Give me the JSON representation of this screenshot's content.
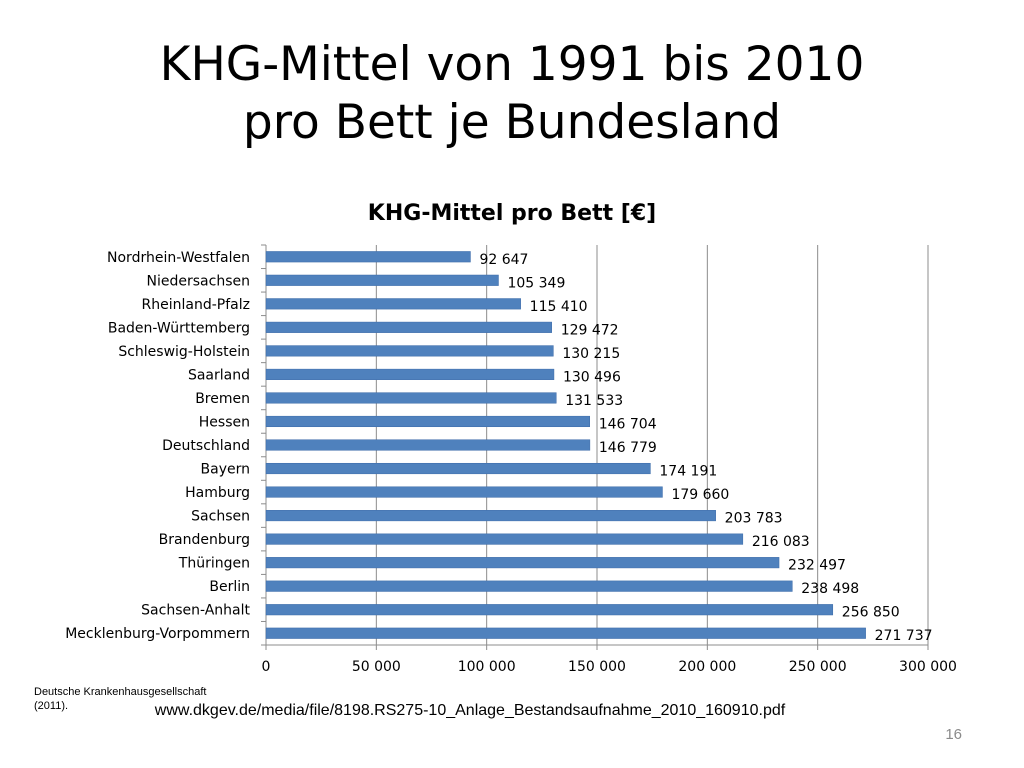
{
  "slide": {
    "title_line1": "KHG-Mittel von 1991 bis 2010",
    "title_line2": "pro Bett je Bundesland",
    "source_note": "Deutsche Krankenhausgesellschaft (2011).",
    "source_url": "www.dkgev.de/media/file/8198.RS275-10_Anlage_Bestandsaufnahme_2010_160910.pdf",
    "page_number": "16"
  },
  "colors": {
    "bar": "#4f81bd",
    "bar_edge": "#3b6aa8",
    "grid": "#8c8c8c",
    "axis": "#8c8c8c"
  },
  "chart_data": {
    "type": "bar",
    "orientation": "horizontal",
    "title": "KHG-Mittel pro Bett [€]",
    "categories": [
      "Nordrhein-Westfalen",
      "Niedersachsen",
      "Rheinland-Pfalz",
      "Baden-Württemberg",
      "Schleswig-Holstein",
      "Saarland",
      "Bremen",
      "Hessen",
      "Deutschland",
      "Bayern",
      "Hamburg",
      "Sachsen",
      "Brandenburg",
      "Thüringen",
      "Berlin",
      "Sachsen-Anhalt",
      "Mecklenburg-Vorpommern"
    ],
    "values": [
      92647,
      105349,
      115410,
      129472,
      130215,
      130496,
      131533,
      146704,
      146779,
      174191,
      179660,
      203783,
      216083,
      232497,
      238498,
      256850,
      271737
    ],
    "value_labels": [
      "92 647",
      "105 349",
      "115 410",
      "129 472",
      "130 215",
      "130 496",
      "131 533",
      "146 704",
      "146 779",
      "174 191",
      "179 660",
      "203 783",
      "216 083",
      "232 497",
      "238 498",
      "256 850",
      "271 737"
    ],
    "xlim": [
      0,
      300000
    ],
    "xticks": [
      0,
      50000,
      100000,
      150000,
      200000,
      250000,
      300000
    ],
    "xtick_labels": [
      "0",
      "50 000",
      "100 000",
      "150 000",
      "200 000",
      "250 000",
      "300 000"
    ],
    "grid": true,
    "legend": "none"
  }
}
